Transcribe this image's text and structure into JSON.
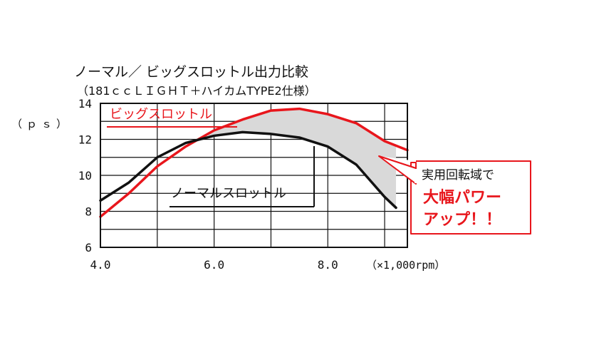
{
  "chart_data": {
    "type": "line",
    "title": "ノーマル／ ビッグスロットル出力比較",
    "subtitle": "（181ｃｃＬＩＧＨＴ＋ハイカムTYPE2仕様）",
    "ylabel": "（ｐｓ）",
    "xlabel": "（×1,000rpm）",
    "xlim": [
      4.0,
      9.4
    ],
    "ylim": [
      6,
      14
    ],
    "x_ticks": [
      "4.0",
      "6.0",
      "8.0"
    ],
    "x_tick_values": [
      4.0,
      6.0,
      8.0
    ],
    "y_ticks": [
      "6",
      "8",
      "10",
      "12",
      "14"
    ],
    "y_tick_values": [
      6,
      8,
      10,
      12,
      14
    ],
    "grid": true,
    "series": [
      {
        "name": "ビッグスロットル",
        "color": "#e8161c",
        "x": [
          4.0,
          4.5,
          5.0,
          5.5,
          6.0,
          6.5,
          7.0,
          7.5,
          8.0,
          8.5,
          9.0,
          9.4
        ],
        "y": [
          7.7,
          9.0,
          10.5,
          11.6,
          12.5,
          13.1,
          13.6,
          13.7,
          13.4,
          12.9,
          11.9,
          11.4
        ]
      },
      {
        "name": "ノーマルスロットル",
        "color": "#111111",
        "x": [
          4.0,
          4.5,
          5.0,
          5.5,
          6.0,
          6.5,
          7.0,
          7.5,
          8.0,
          8.5,
          9.0,
          9.2
        ],
        "y": [
          8.6,
          9.6,
          11.0,
          11.8,
          12.2,
          12.4,
          12.3,
          12.1,
          11.6,
          10.6,
          8.8,
          8.2
        ]
      }
    ],
    "annotation": {
      "line1": "実用回転域で",
      "line2": "大幅パワー",
      "line3": "アップ！！",
      "border_color": "#e8161c",
      "shade_color": "#d9d9d9"
    }
  }
}
